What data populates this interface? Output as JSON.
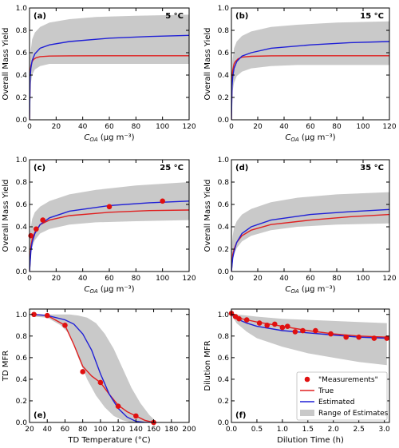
{
  "colors": {
    "true": "#e02020",
    "estimated": "#1f1fd6",
    "range": "#c9c9c9",
    "measurement": "#e01010",
    "frame": "#000000"
  },
  "legend": {
    "position": "bottom-right of panel (f)",
    "entries": [
      {
        "key": "measurements",
        "label": "\"Measurements\""
      },
      {
        "key": "true",
        "label": "True"
      },
      {
        "key": "estimated",
        "label": "Estimated"
      },
      {
        "key": "range",
        "label": "Range of Estimates"
      }
    ]
  },
  "chart_data": [
    {
      "type": "line",
      "tag": "(a)",
      "temp": "5 °C",
      "ylabel": "Overall Mass Yield",
      "xlabel": "COA (μg m⁻³)",
      "xlim": [
        0,
        120
      ],
      "ylim": [
        0,
        1.0
      ],
      "xticks": [
        "0",
        "20",
        "40",
        "60",
        "80",
        "100",
        "120"
      ],
      "yticks": [
        "0.0",
        "0.2",
        "0.4",
        "0.6",
        "0.8",
        "1.0"
      ],
      "range": {
        "x": [
          0,
          0.5,
          1,
          2,
          4,
          8,
          15,
          30,
          50,
          80,
          120
        ],
        "lower": [
          0,
          0.25,
          0.33,
          0.4,
          0.45,
          0.48,
          0.5,
          0.5,
          0.5,
          0.5,
          0.5
        ],
        "upper": [
          0,
          0.55,
          0.63,
          0.72,
          0.78,
          0.83,
          0.87,
          0.9,
          0.92,
          0.93,
          0.94
        ]
      },
      "true": {
        "x": [
          0,
          0.5,
          1,
          2,
          3,
          5,
          8,
          15,
          30,
          60,
          120
        ],
        "y": [
          0,
          0.43,
          0.48,
          0.52,
          0.54,
          0.555,
          0.565,
          0.57,
          0.572,
          0.573,
          0.573
        ]
      },
      "estimated": {
        "x": [
          0,
          0.5,
          1,
          2,
          4,
          8,
          15,
          30,
          60,
          90,
          120
        ],
        "y": [
          0,
          0.38,
          0.46,
          0.53,
          0.59,
          0.64,
          0.67,
          0.7,
          0.73,
          0.745,
          0.755
        ]
      },
      "measurements": []
    },
    {
      "type": "line",
      "tag": "(b)",
      "temp": "15 °C",
      "ylabel": "Overall Mass Yield",
      "xlabel": "COA (μg m⁻³)",
      "xlim": [
        0,
        120
      ],
      "ylim": [
        0,
        1.0
      ],
      "xticks": [
        "0",
        "20",
        "40",
        "60",
        "80",
        "100",
        "120"
      ],
      "yticks": [
        "0.0",
        "0.2",
        "0.4",
        "0.6",
        "0.8",
        "1.0"
      ],
      "range": {
        "x": [
          0,
          0.5,
          1,
          2,
          4,
          8,
          15,
          30,
          50,
          80,
          120
        ],
        "lower": [
          0,
          0.18,
          0.26,
          0.33,
          0.39,
          0.43,
          0.46,
          0.48,
          0.49,
          0.49,
          0.49
        ],
        "upper": [
          0,
          0.45,
          0.55,
          0.64,
          0.7,
          0.75,
          0.79,
          0.83,
          0.85,
          0.87,
          0.88
        ]
      },
      "true": {
        "x": [
          0,
          0.5,
          1,
          2,
          3,
          5,
          8,
          15,
          30,
          60,
          120
        ],
        "y": [
          0,
          0.38,
          0.44,
          0.5,
          0.52,
          0.545,
          0.56,
          0.568,
          0.572,
          0.573,
          0.573
        ]
      },
      "estimated": {
        "x": [
          0,
          0.5,
          1,
          2,
          4,
          8,
          15,
          30,
          60,
          90,
          120
        ],
        "y": [
          0,
          0.3,
          0.38,
          0.46,
          0.52,
          0.57,
          0.6,
          0.64,
          0.67,
          0.69,
          0.7
        ]
      },
      "measurements": []
    },
    {
      "type": "line",
      "tag": "(c)",
      "temp": "25 °C",
      "ylabel": "Overall Mass Yield",
      "xlabel": "COA (μg m⁻³)",
      "xlim": [
        0,
        120
      ],
      "ylim": [
        0,
        1.0
      ],
      "xticks": [
        "0",
        "20",
        "40",
        "60",
        "80",
        "100",
        "120"
      ],
      "yticks": [
        "0.0",
        "0.2",
        "0.4",
        "0.6",
        "0.8",
        "1.0"
      ],
      "range": {
        "x": [
          0,
          0.5,
          1,
          2,
          4,
          8,
          15,
          30,
          50,
          80,
          120
        ],
        "lower": [
          0,
          0.1,
          0.16,
          0.22,
          0.28,
          0.34,
          0.38,
          0.42,
          0.44,
          0.45,
          0.46
        ],
        "upper": [
          0,
          0.33,
          0.4,
          0.47,
          0.53,
          0.58,
          0.63,
          0.69,
          0.73,
          0.77,
          0.8
        ]
      },
      "true": {
        "x": [
          0,
          1,
          2,
          4,
          8,
          15,
          30,
          60,
          90,
          120
        ],
        "y": [
          0,
          0.22,
          0.29,
          0.35,
          0.42,
          0.46,
          0.5,
          0.53,
          0.545,
          0.55
        ]
      },
      "estimated": {
        "x": [
          0,
          1,
          2,
          4,
          8,
          15,
          30,
          60,
          90,
          120
        ],
        "y": [
          0,
          0.18,
          0.26,
          0.34,
          0.42,
          0.48,
          0.54,
          0.59,
          0.615,
          0.63
        ]
      },
      "measurements": [
        {
          "x": 1,
          "y": 0.32
        },
        {
          "x": 5,
          "y": 0.38
        },
        {
          "x": 10,
          "y": 0.46
        },
        {
          "x": 60,
          "y": 0.58
        },
        {
          "x": 100,
          "y": 0.63
        }
      ]
    },
    {
      "type": "line",
      "tag": "(d)",
      "temp": "35 °C",
      "ylabel": "Overall Mass Yield",
      "xlabel": "COA (μg m⁻³)",
      "xlim": [
        0,
        120
      ],
      "ylim": [
        0,
        1.0
      ],
      "xticks": [
        "0",
        "20",
        "40",
        "60",
        "80",
        "100",
        "120"
      ],
      "yticks": [
        "0.0",
        "0.2",
        "0.4",
        "0.6",
        "0.8",
        "1.0"
      ],
      "range": {
        "x": [
          0,
          0.5,
          1,
          2,
          4,
          8,
          15,
          30,
          50,
          80,
          120
        ],
        "lower": [
          0,
          0.06,
          0.1,
          0.15,
          0.21,
          0.27,
          0.32,
          0.37,
          0.4,
          0.42,
          0.43
        ],
        "upper": [
          0,
          0.25,
          0.32,
          0.39,
          0.45,
          0.51,
          0.56,
          0.62,
          0.66,
          0.69,
          0.71
        ]
      },
      "true": {
        "x": [
          0,
          1,
          2,
          4,
          8,
          15,
          30,
          60,
          90,
          120
        ],
        "y": [
          0,
          0.15,
          0.2,
          0.26,
          0.32,
          0.37,
          0.42,
          0.46,
          0.49,
          0.51
        ]
      },
      "estimated": {
        "x": [
          0,
          1,
          2,
          4,
          8,
          15,
          30,
          60,
          90,
          120
        ],
        "y": [
          0,
          0.12,
          0.18,
          0.26,
          0.34,
          0.4,
          0.46,
          0.51,
          0.535,
          0.555
        ]
      },
      "measurements": []
    },
    {
      "type": "line",
      "tag": "(e)",
      "temp": "",
      "ylabel": "TD MFR",
      "xlabel": "TD Temperature (°C)",
      "xlim": [
        20,
        200
      ],
      "ylim": [
        0,
        1.05
      ],
      "xticks": [
        "20",
        "40",
        "60",
        "80",
        "100",
        "120",
        "140",
        "160",
        "180",
        "200"
      ],
      "yticks": [
        "0.0",
        "0.2",
        "0.4",
        "0.6",
        "0.8",
        "1.0"
      ],
      "range": {
        "x": [
          25,
          40,
          55,
          65,
          75,
          85,
          95,
          105,
          115,
          125,
          135,
          145,
          155,
          160
        ],
        "lower": [
          0.98,
          0.97,
          0.9,
          0.82,
          0.6,
          0.4,
          0.25,
          0.14,
          0.06,
          0.02,
          0.0,
          0.0,
          0.0,
          0.0
        ],
        "upper": [
          1.0,
          1.0,
          1.0,
          1.0,
          0.99,
          0.97,
          0.92,
          0.82,
          0.68,
          0.5,
          0.32,
          0.18,
          0.07,
          0.03
        ]
      },
      "true": {
        "x": [
          25,
          40,
          60,
          70,
          80,
          90,
          100,
          110,
          120,
          130,
          140,
          150,
          160
        ],
        "y": [
          1.0,
          0.99,
          0.9,
          0.72,
          0.52,
          0.43,
          0.37,
          0.26,
          0.16,
          0.1,
          0.06,
          0.02,
          0.0
        ]
      },
      "estimated": {
        "x": [
          25,
          40,
          60,
          70,
          80,
          90,
          100,
          110,
          120,
          130,
          140,
          150,
          160
        ],
        "y": [
          1.0,
          0.99,
          0.95,
          0.91,
          0.82,
          0.67,
          0.45,
          0.26,
          0.13,
          0.05,
          0.01,
          0.0,
          0.0
        ]
      },
      "measurements": [
        {
          "x": 25,
          "y": 1.0
        },
        {
          "x": 40,
          "y": 0.99
        },
        {
          "x": 60,
          "y": 0.9
        },
        {
          "x": 80,
          "y": 0.47
        },
        {
          "x": 100,
          "y": 0.37
        },
        {
          "x": 120,
          "y": 0.15
        },
        {
          "x": 140,
          "y": 0.06
        },
        {
          "x": 160,
          "y": 0.0
        }
      ]
    },
    {
      "type": "line",
      "tag": "(f)",
      "temp": "",
      "ylabel": "Dilution MFR",
      "xlabel": "Dilution Time (h)",
      "xlim": [
        0,
        3.1
      ],
      "ylim": [
        0,
        1.05
      ],
      "xticks": [
        "0.0",
        "0.5",
        "1.0",
        "1.5",
        "2.0",
        "2.5",
        "3.0"
      ],
      "yticks": [
        "0.0",
        "0.2",
        "0.4",
        "0.6",
        "0.8",
        "1.0"
      ],
      "range": {
        "x": [
          0,
          0.1,
          0.3,
          0.5,
          1.0,
          1.5,
          2.0,
          2.5,
          3.05
        ],
        "lower": [
          1.0,
          0.92,
          0.84,
          0.78,
          0.7,
          0.64,
          0.6,
          0.56,
          0.53
        ],
        "upper": [
          1.0,
          1.0,
          0.99,
          0.98,
          0.96,
          0.95,
          0.94,
          0.93,
          0.92
        ]
      },
      "true": {
        "x": [
          0,
          0.1,
          0.3,
          0.5,
          1.0,
          1.5,
          2.0,
          2.5,
          3.05
        ],
        "y": [
          1.0,
          0.97,
          0.95,
          0.93,
          0.89,
          0.85,
          0.82,
          0.8,
          0.79
        ]
      },
      "estimated": {
        "x": [
          0,
          0.1,
          0.3,
          0.5,
          1.0,
          1.5,
          2.0,
          2.5,
          3.05
        ],
        "y": [
          1.0,
          0.96,
          0.92,
          0.89,
          0.85,
          0.83,
          0.81,
          0.79,
          0.78
        ]
      },
      "measurements": [
        {
          "x": 0.0,
          "y": 1.01
        },
        {
          "x": 0.08,
          "y": 0.98
        },
        {
          "x": 0.15,
          "y": 0.96
        },
        {
          "x": 0.3,
          "y": 0.95
        },
        {
          "x": 0.55,
          "y": 0.92
        },
        {
          "x": 0.7,
          "y": 0.9
        },
        {
          "x": 0.85,
          "y": 0.91
        },
        {
          "x": 1.0,
          "y": 0.88
        },
        {
          "x": 1.1,
          "y": 0.89
        },
        {
          "x": 1.25,
          "y": 0.84
        },
        {
          "x": 1.4,
          "y": 0.85
        },
        {
          "x": 1.65,
          "y": 0.85
        },
        {
          "x": 1.95,
          "y": 0.82
        },
        {
          "x": 2.25,
          "y": 0.79
        },
        {
          "x": 2.5,
          "y": 0.79
        },
        {
          "x": 2.8,
          "y": 0.78
        },
        {
          "x": 3.05,
          "y": 0.78
        }
      ]
    }
  ]
}
